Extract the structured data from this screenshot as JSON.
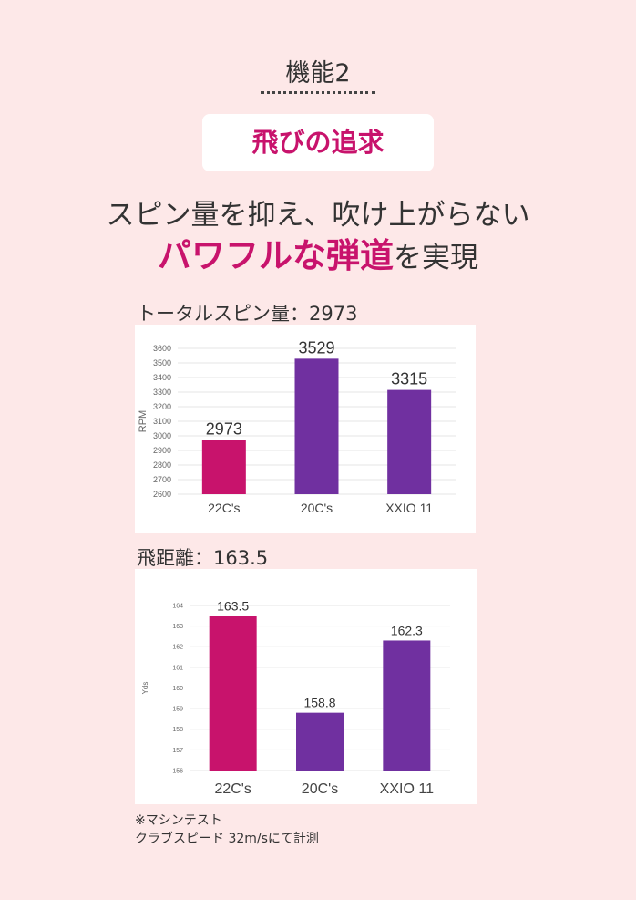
{
  "header": {
    "feature_label": "機能2",
    "pill_text": "飛びの追求",
    "headline_line1": "スピン量を抑え、吹け上がらない",
    "headline_line2_em": "パワフルな弾道",
    "headline_line2_rest": "を実現"
  },
  "colors": {
    "background": "#fde8e8",
    "accent": "#c8136c",
    "series_22cs": "#c8136c",
    "series_other": "#7030a0"
  },
  "chart_data": [
    {
      "type": "bar",
      "caption": "トータルスピン量：2973",
      "ylabel": "RPM",
      "categories": [
        "22C's",
        "20C's",
        "XXIO 11"
      ],
      "values": [
        2973,
        3529,
        3315
      ],
      "value_labels": [
        "2973",
        "3529",
        "3315"
      ],
      "bar_colors": [
        "#c8136c",
        "#7030a0",
        "#7030a0"
      ],
      "ylim": [
        2600,
        3600
      ],
      "yticks": [
        2600,
        2700,
        2800,
        2900,
        3000,
        3100,
        3200,
        3300,
        3400,
        3500,
        3600
      ],
      "grid": true
    },
    {
      "type": "bar",
      "caption": "飛距離：163.5",
      "ylabel": "Yds",
      "categories": [
        "22C's",
        "20C's",
        "XXIO 11"
      ],
      "values": [
        163.5,
        158.8,
        162.3
      ],
      "value_labels": [
        "163.5",
        "158.8",
        "162.3"
      ],
      "bar_colors": [
        "#c8136c",
        "#7030a0",
        "#7030a0"
      ],
      "ylim": [
        156,
        164
      ],
      "yticks": [
        156,
        157,
        158,
        159,
        160,
        161,
        162,
        163,
        164
      ],
      "grid": true
    }
  ],
  "note": {
    "line1": "※マシンテスト",
    "line2": "クラブスピード 32m/sにて計測"
  }
}
